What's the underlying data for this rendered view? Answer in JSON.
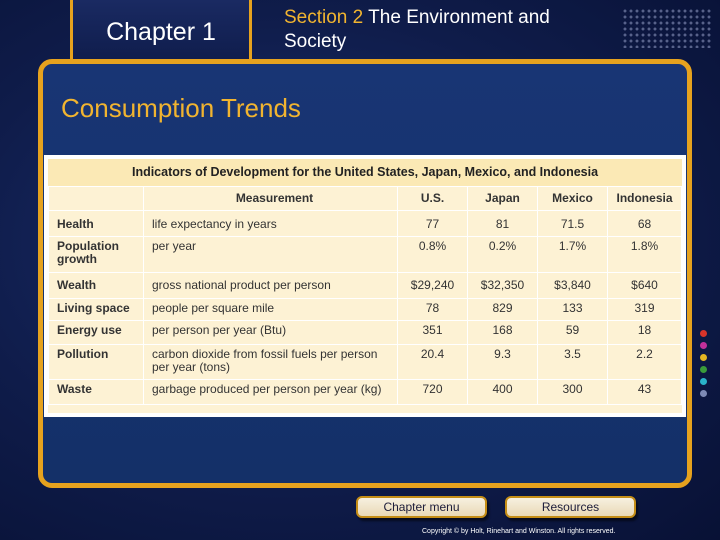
{
  "header": {
    "chapter_label": "Chapter 1",
    "section_label": "Section 2",
    "section_title": "The Environment and Society"
  },
  "main": {
    "title": "Consumption Trends",
    "table": {
      "caption": "Indicators of Development for the United States, Japan, Mexico, and Indonesia",
      "columns": [
        "",
        "Measurement",
        "U.S.",
        "Japan",
        "Mexico",
        "Indonesia"
      ],
      "rows": [
        {
          "indicator": "Health",
          "measurement": "life expectancy in years",
          "values": [
            "77",
            "81",
            "71.5",
            "68"
          ]
        },
        {
          "indicator": "Population growth",
          "measurement": "per year",
          "values": [
            "0.8%",
            "0.2%",
            "1.7%",
            "1.8%"
          ]
        },
        {
          "indicator": "Wealth",
          "measurement": "gross national product per person",
          "values": [
            "$29,240",
            "$32,350",
            "$3,840",
            "$640"
          ]
        },
        {
          "indicator": "Living space",
          "measurement": "people per square mile",
          "values": [
            "78",
            "829",
            "133",
            "319"
          ]
        },
        {
          "indicator": "Energy use",
          "measurement": "per person per year (Btu)",
          "values": [
            "351",
            "168",
            "59",
            "18"
          ]
        },
        {
          "indicator": "Pollution",
          "measurement": "carbon dioxide from fossil fuels per person per year (tons)",
          "values": [
            "20.4",
            "9.3",
            "3.5",
            "2.2"
          ]
        },
        {
          "indicator": "Waste",
          "measurement": "garbage produced per person per year (kg)",
          "values": [
            "720",
            "400",
            "300",
            "43"
          ]
        }
      ]
    }
  },
  "footer": {
    "chapter_menu_label": "Chapter menu",
    "resources_label": "Resources",
    "copyright": "Copyright © by Holt, Rinehart and Winston. All rights reserved."
  },
  "colors": {
    "accent": "#e6a21e",
    "background": "#0f1c4a",
    "side_dots": [
      "#d8342a",
      "#c2309a",
      "#e2b522",
      "#3a9b3a",
      "#2ab3c9",
      "#7e8ab5"
    ]
  }
}
